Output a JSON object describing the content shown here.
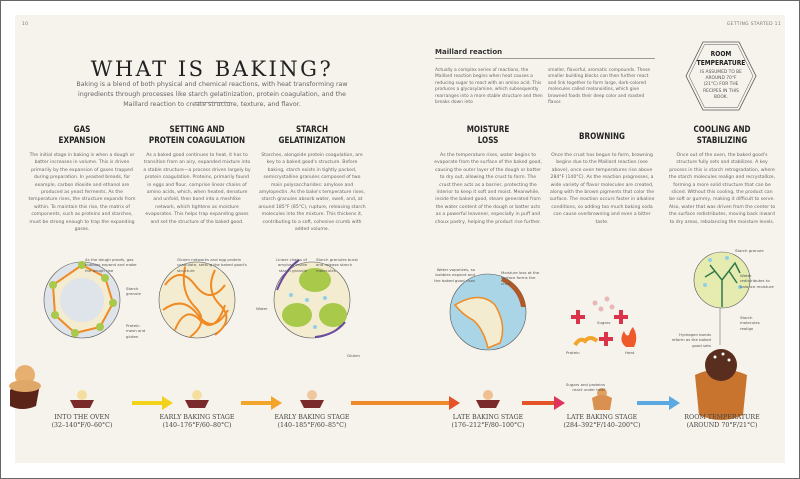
{
  "folio": {
    "left": "10",
    "right": "GETTING STARTED 11"
  },
  "title": "WHAT IS BAKING?",
  "intro": "Baking is a blend of both physical and chemical reactions, with heat transforming raw ingredients through processes like starch gelatinization, protein coagulation, and the Maillard reaction to create structure, texture, and flavor.",
  "maillard": {
    "heading": "Maillard reaction",
    "col1": "Actually a complex series of reactions, the Maillard reaction begins when heat causes a reducing sugar to react with an amino acid. This produces a glycosylamine, which subsequently rearranges into a more stable structure and then breaks down into",
    "col2": "smaller, flavorful, aromatic compounds. These smaller building blocks can then further react and link together to form large, dark-colored molecules called melanoidins, which give browned foods their deep color and roasted flavor."
  },
  "room_temp": {
    "title1": "ROOM",
    "title2": "TEMPERATURE",
    "text": "IS ASSUMED TO BE AROUND 70°F (21°C) FOR THE RECIPES IN THIS BOOK."
  },
  "sections": [
    {
      "heading": "GAS\nEXPANSION",
      "body": "The initial stage in baking is when a dough or batter increases in volume. This is driven primarily by the expansion of gases trapped during preparation. In yeasted breads, for example, carbon dioxide and ethanol are produced as yeast ferments. As the temperature rises, the structure expands from within. To maintain this rise, the matrix of components, such as proteins and starches, must be strong enough to trap the expanding gases."
    },
    {
      "heading": "SETTING AND\nPROTEIN COAGULATION",
      "body": "As a baked good continues to heat, it has to transition from an airy, expanded mixture into a stable structure—a process driven largely by protein coagulation. Proteins, primarily found in eggs and flour, comprise linear chains of amino acids, which, when heated, denature and unfold, then bond into a meshlike network, which tightens as moisture evaporates. This helps trap expanding gases and set the structure of the baked good."
    },
    {
      "heading": "STARCH\nGELATINIZATION",
      "body": "Starches, alongside protein coagulation, are key to a baked good's structure. Before baking, starch exists in tightly packed, semicrystalline granules composed of two main polysaccharides: amylose and amylopectin. As the bake's temperature rises, starch granules absorb water, swell, and, at around 185°F (85°C), rupture, releasing starch molecules into the mixture. This thickens it, contributing to a soft, cohesive crumb with added volume."
    },
    {
      "heading": "MOISTURE\nLOSS",
      "body": "As the temperature rises, water begins to evaporate from the surface of the baked good, causing the outer layer of the dough or batter to dry out, allowing the crust to form. The crust then acts as a barrier, protecting the interior to keep it soft and moist. Meanwhile, inside the baked good, steam generated from the water content of the dough or batter acts as a powerful leavener, especially in puff and choux pastry, helping the product rise further."
    },
    {
      "heading": "BROWNING",
      "body": "Once the crust has begun to form, browning begins due to the Maillard reaction (see above), once oven temperatures rise above 284°F (140°C). As the reaction progresses, a wide variety of flavor molecules are created, along with the brown pigments that color the surface. The reaction occurs faster in alkaline conditions, so adding too much baking soda can cause overbrowning and even a bitter taste."
    },
    {
      "heading": "COOLING AND\nSTABILIZING",
      "body": "Once out of the oven, the baked good's structure fully sets and stabilizes. A key process in this is starch retrogradation, where the starch molecules realign and recrystallize, forming a more solid structure that can be sliced. Without this cooling, the product can be soft or gummy, making it difficult to serve. Also, water that was driven from the center to the surface redistributes, moving back inward to dry areas, rebalancing the moisture levels."
    }
  ],
  "labels": {
    "gas_bubbles": "As the dough proofs, gas bubbles expand and make the dough rise",
    "starch_granule": "Starch granule",
    "protein_mesh": "Protein mesh and gluten",
    "gluten_networks": "Gluten networks and egg protein coagulate, setting the baked good's structure",
    "linear_chains": "Linear chains of amylose inside starch granule",
    "granules_burst": "Starch granules burst and release starch molecules",
    "water": "Water",
    "gluten": "Gluten",
    "water_vaporizes": "Water vaporizes, so bubbles expand and the baked good rises",
    "moisture_loss": "Moisture loss at the surface forms the crust",
    "sugars": "Sugars",
    "protein": "Protein",
    "heat": "Heat",
    "sugars_proteins": "Sugars and proteins react under heat",
    "starch_granule2": "Starch granule",
    "water_redistributes": "Water redistributes to balance moisture",
    "starch_realign": "Starch molecules realign",
    "hydrogen_bonds": "Hydrogen bonds reform as the baked good sets"
  },
  "stages": [
    {
      "name": "INTO THE OVEN",
      "temp": "(32–140°F/0–60°C)"
    },
    {
      "name": "EARLY BAKING STAGE",
      "temp": "(140–176°F/60–80°C)"
    },
    {
      "name": "EARLY BAKING STAGE",
      "temp": "(140–185°F/60–85°C)"
    },
    {
      "name": "LATE BAKING STAGE",
      "temp": "(176–212°F/80–100°C)"
    },
    {
      "name": "LATE BAKING STAGE",
      "temp": "(284–392°F/140–200°C)"
    },
    {
      "name": "ROOM TEMPERATURE",
      "temp": "(AROUND 70°F/21°C)"
    }
  ],
  "colors": {
    "page": "#f6f3ec",
    "arrow1": "#f2d21a",
    "arrow2": "#f2a52a",
    "arrow3": "#ef8a2a",
    "arrow4": "#e5532b",
    "arrow5": "#e0325a",
    "arrow6": "#5aa9e0",
    "plus": "#d9344a",
    "gluten": "#f08a24",
    "starch": "#a8c94a"
  }
}
